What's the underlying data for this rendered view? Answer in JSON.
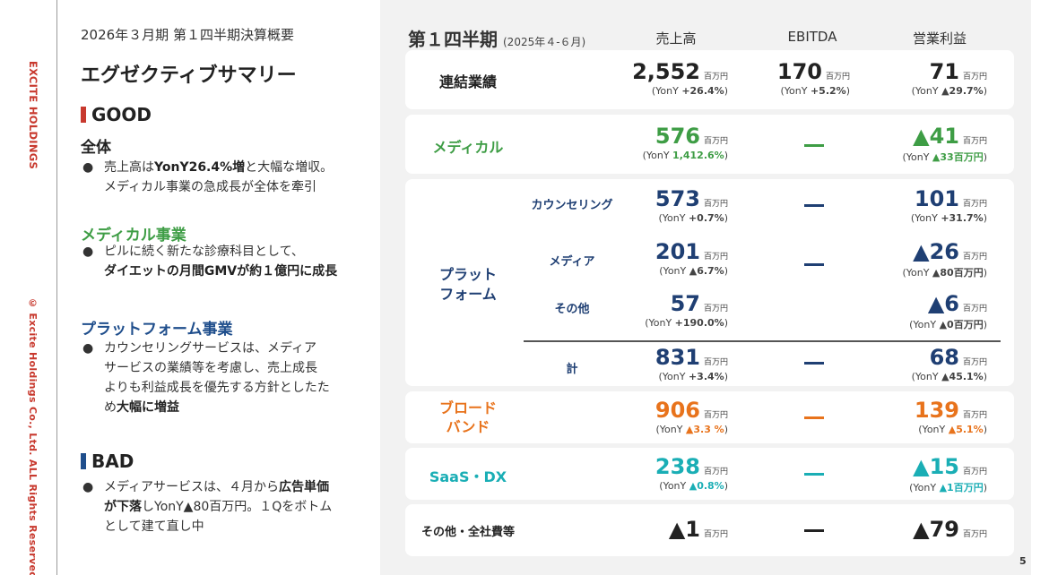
{
  "side": {
    "brand": "EXCITE HOLDINGS",
    "copyright": "© Excite Holdings Co., Ltd. ALL Rights Reserved."
  },
  "summary": {
    "kessan_title": "2026年３月期 第１四半期決算概要",
    "exec_title": "エグゼクティブサマリー",
    "good": {
      "heading": "GOOD",
      "sections": [
        {
          "title": "全体",
          "lines": [
            [
              "売上高は",
              "YonY26.4%増",
              "と大幅な増収。"
            ],
            [
              "メディカル事業の急成長が全体を牽引",
              "",
              ""
            ]
          ]
        },
        {
          "title": "メディカル事業",
          "lines": [
            [
              "ピルに続く新たな診療科目として、",
              "",
              ""
            ],
            [
              "",
              "ダイエットの月間GMVが約１億円に成長",
              ""
            ]
          ]
        },
        {
          "title": "プラットフォーム事業",
          "lines": [
            [
              "カウンセリングサービスは、メディア",
              "",
              ""
            ],
            [
              "サービスの業績等を考慮し、売上成長",
              "",
              ""
            ],
            [
              "よりも利益成長を優先する方針としたた",
              "",
              ""
            ],
            [
              "め",
              "大幅に増益",
              ""
            ]
          ]
        }
      ]
    },
    "bad": {
      "heading": "BAD",
      "lines": [
        [
          "メディアサービスは、４月から",
          "広告単価",
          ""
        ],
        [
          "",
          "が下落",
          "しYonY▲80百万円。１Qをボトム"
        ],
        [
          "として建て直し中",
          "",
          ""
        ]
      ]
    },
    "colors": {
      "good_marker": "#c8392e",
      "bad_marker": "#1f4e8c"
    }
  },
  "table": {
    "title": "第１四半期",
    "period": "(2025年４-６月)",
    "col_headers": [
      "売上高",
      "EBITDA",
      "営業利益"
    ],
    "unit": "百万円",
    "yoy_prefix": "(YonY ",
    "rows": {
      "consolidated": {
        "label": "連結業績",
        "sales": {
          "value": "2,552",
          "yoy": "+26.4%"
        },
        "ebitda": {
          "value": "170",
          "yoy": "+5.2%"
        },
        "op": {
          "value": "71",
          "yoy": "▲29.7%"
        }
      },
      "medical": {
        "label": "メディカル",
        "sales": {
          "value": "576",
          "yoy": "1,412.6%"
        },
        "ebitda": {
          "dash": "—"
        },
        "op": {
          "value": "▲41",
          "yoy": "▲33百万円"
        }
      },
      "platform": {
        "label_line1": "プラット",
        "label_line2": "フォーム",
        "sub": [
          {
            "label": "カウンセリング",
            "sales": {
              "value": "573",
              "yoy": "+0.7%"
            },
            "op": {
              "value": "101",
              "yoy": "+31.7%"
            }
          },
          {
            "label": "メディア",
            "sales": {
              "value": "201",
              "yoy": "▲6.7%"
            },
            "op": {
              "value": "▲26",
              "yoy": "▲80百万円"
            }
          },
          {
            "label": "その他",
            "sales": {
              "value": "57",
              "yoy": "+190.0%"
            },
            "op": {
              "value": "▲6",
              "yoy": "▲0百万円"
            }
          },
          {
            "label": "計",
            "sales": {
              "value": "831",
              "yoy": "+3.4%"
            },
            "op": {
              "value": "68",
              "yoy": "▲45.1%"
            }
          }
        ]
      },
      "broadband": {
        "label_line1": "ブロード",
        "label_line2": "バンド",
        "sales": {
          "value": "906",
          "yoy": "▲3.3 %"
        },
        "op": {
          "value": "139",
          "yoy": "▲5.1%"
        }
      },
      "saas": {
        "label": "SaaS・DX",
        "sales": {
          "value": "238",
          "yoy": "▲0.8%"
        },
        "op": {
          "value": "▲15",
          "yoy": "▲1百万円"
        }
      },
      "others": {
        "label": "その他・全社費等",
        "sales": {
          "value": "▲1"
        },
        "op": {
          "value": "▲79"
        }
      }
    },
    "colors": {
      "navy": "#1f3f73",
      "green": "#3e9d45",
      "orange": "#e8731c",
      "teal": "#1aaeb5"
    }
  },
  "page_number": "5"
}
